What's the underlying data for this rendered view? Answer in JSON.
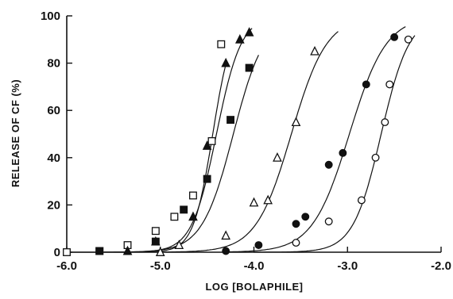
{
  "chart_data": {
    "type": "scatter",
    "title": "",
    "xlabel": "LOG [BOLAPHILE]",
    "ylabel": "RELEASE OF CF (%)",
    "xlim": [
      -6.0,
      -2.0
    ],
    "ylim": [
      0,
      100
    ],
    "x_ticks": [
      -6.0,
      -5.0,
      -4.0,
      -3.0,
      -2.0
    ],
    "x_tick_labels": [
      "-6.0",
      "-5.0",
      "-4.0",
      "-3.0",
      "-2.0"
    ],
    "y_ticks": [
      0,
      20,
      40,
      60,
      80,
      100
    ],
    "y_tick_labels": [
      "0",
      "20",
      "40",
      "60",
      "80",
      "100"
    ],
    "legend": "none",
    "grid": false,
    "series": [
      {
        "marker": "square-open",
        "x": [
          -6.0,
          -5.65,
          -5.35,
          -5.05,
          -4.85,
          -4.65,
          -4.45,
          -4.35
        ],
        "y": [
          0,
          0.5,
          3,
          9,
          15,
          24,
          47,
          88
        ],
        "fit": {
          "x50": -4.44,
          "slope": 4.2,
          "x_start": -6.0,
          "x_end": -4.3
        }
      },
      {
        "marker": "triangle-filled",
        "x": [
          -5.35,
          -5.05,
          -4.65,
          -4.5,
          -4.3,
          -4.15,
          -4.05
        ],
        "y": [
          0.5,
          4.5,
          15,
          45,
          80,
          90,
          93
        ],
        "fit": {
          "x50": -4.4,
          "slope": 3.3,
          "x_start": -5.5,
          "x_end": -4.02
        }
      },
      {
        "marker": "square-filled",
        "x": [
          -5.65,
          -5.05,
          -4.75,
          -4.5,
          -4.25,
          -4.05
        ],
        "y": [
          0.5,
          4.5,
          18,
          31,
          56,
          78
        ],
        "fit": {
          "x50": -4.22,
          "slope": 2.6,
          "x_start": -5.6,
          "x_end": -3.95
        }
      },
      {
        "marker": "triangle-open",
        "x": [
          -5.0,
          -4.8,
          -4.3,
          -4.0,
          -3.85,
          -3.75,
          -3.55,
          -3.35
        ],
        "y": [
          0,
          3,
          7,
          21,
          22,
          40,
          55,
          85
        ],
        "fit": {
          "x50": -3.6,
          "slope": 2.3,
          "x_start": -5.0,
          "x_end": -3.1
        }
      },
      {
        "marker": "circle-filled",
        "x": [
          -4.3,
          -3.95,
          -3.55,
          -3.45,
          -3.2,
          -3.05,
          -2.8,
          -2.5
        ],
        "y": [
          0.5,
          3,
          12,
          15,
          37,
          42,
          71,
          91
        ],
        "fit": {
          "x50": -2.98,
          "slope": 2.2,
          "x_start": -4.3,
          "x_end": -2.38
        }
      },
      {
        "marker": "circle-open",
        "x": [
          -3.55,
          -3.2,
          -2.85,
          -2.7,
          -2.6,
          -2.55,
          -2.35
        ],
        "y": [
          4,
          13,
          22,
          40,
          55,
          71,
          90
        ],
        "fit": {
          "x50": -2.64,
          "slope": 2.9,
          "x_start": -4.0,
          "x_end": -2.28
        }
      }
    ]
  }
}
